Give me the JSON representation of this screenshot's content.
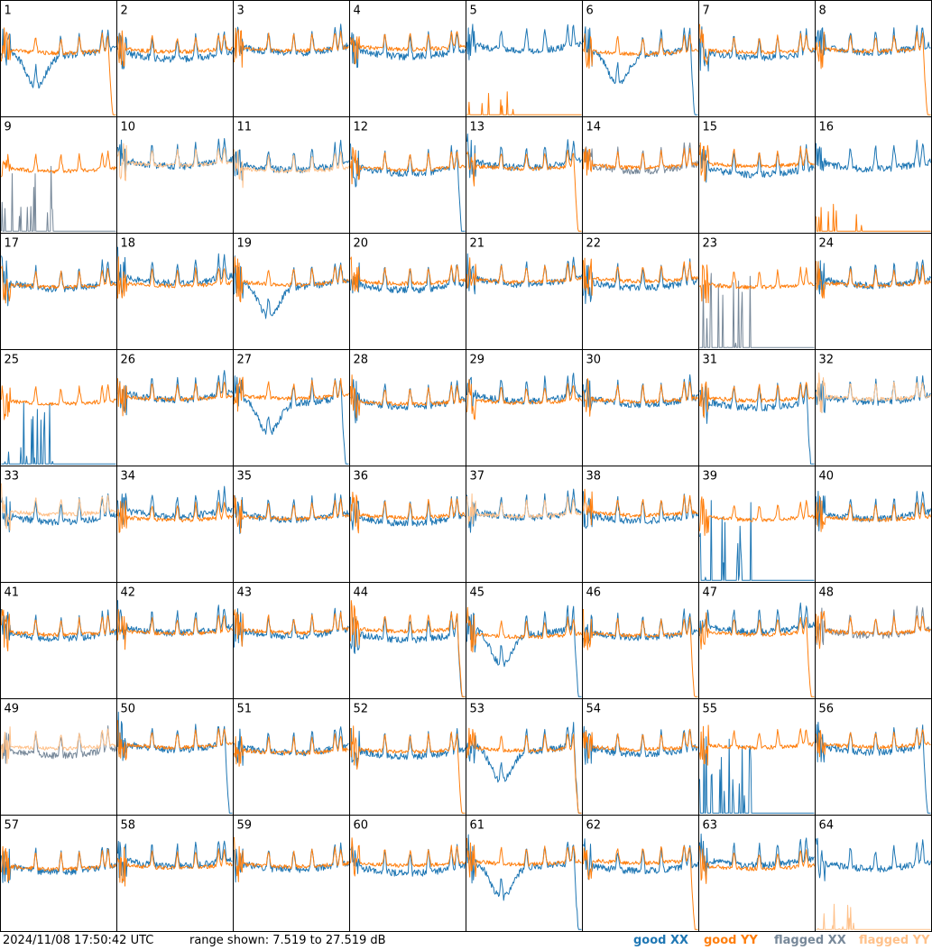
{
  "chart_data": {
    "type": "line",
    "panel_count": 64,
    "grid": {
      "rows": 8,
      "cols": 8
    },
    "panels": [
      "1",
      "2",
      "3",
      "4",
      "5",
      "6",
      "7",
      "8",
      "9",
      "10",
      "11",
      "12",
      "13",
      "14",
      "15",
      "16",
      "17",
      "18",
      "19",
      "20",
      "21",
      "22",
      "23",
      "24",
      "25",
      "26",
      "27",
      "28",
      "29",
      "30",
      "31",
      "32",
      "33",
      "34",
      "35",
      "36",
      "37",
      "38",
      "39",
      "40",
      "41",
      "42",
      "43",
      "44",
      "45",
      "46",
      "47",
      "48",
      "49",
      "50",
      "51",
      "52",
      "53",
      "54",
      "55",
      "56",
      "57",
      "58",
      "59",
      "60",
      "61",
      "62",
      "63",
      "64"
    ],
    "ylim": [
      7.519,
      27.519
    ],
    "ylabel_unit": "dB",
    "series": [
      {
        "name": "good XX",
        "color": "#1f77b4"
      },
      {
        "name": "good YY",
        "color": "#ff7f0e"
      },
      {
        "name": "flagged XX",
        "color": "#778899"
      },
      {
        "name": "flagged YY",
        "color": "#ffc18a"
      }
    ]
  },
  "footer": {
    "timestamp": "2024/11/08 17:50:42 UTC",
    "range": "range shown: 7.519 to 27.519 dB"
  },
  "legend": {
    "good_xx": "good XX",
    "good_yy": "good YY",
    "flagged_xx": "flagged XX",
    "flagged_yy": "flagged YY"
  }
}
